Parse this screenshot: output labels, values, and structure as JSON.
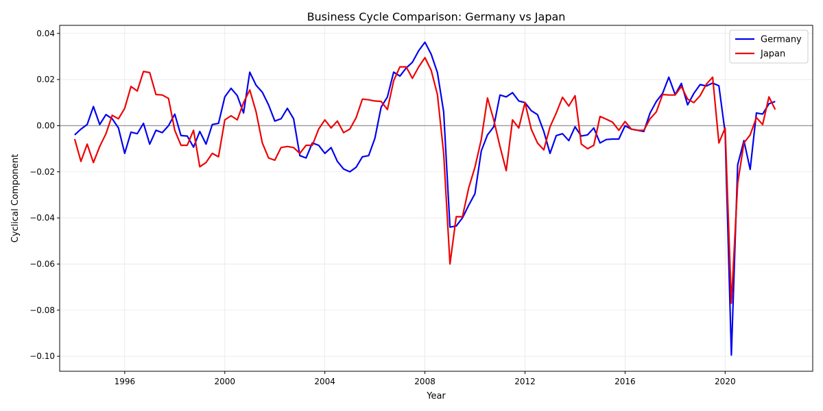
{
  "chart_data": {
    "type": "line",
    "title": "Business Cycle Comparison: Germany vs Japan",
    "xlabel": "Year",
    "ylabel": "Cyclical Component",
    "xlim": [
      1993.4,
      2023.5
    ],
    "ylim": [
      -0.1065,
      0.0435
    ],
    "x_ticks": [
      1996,
      2000,
      2004,
      2008,
      2012,
      2016,
      2020
    ],
    "y_ticks": [
      -0.1,
      -0.08,
      -0.06,
      -0.04,
      -0.02,
      0.0,
      0.02,
      0.04
    ],
    "y_tick_labels": [
      "−0.10",
      "−0.08",
      "−0.06",
      "−0.04",
      "−0.02",
      "0.00",
      "0.02",
      "0.04"
    ],
    "grid": true,
    "zero_line": true,
    "legend_position": "upper-right",
    "x_start": 1994.0,
    "x_step": 0.25,
    "series": [
      {
        "name": "Germany",
        "color": "#0000ee",
        "values": [
          -0.004,
          -0.0015,
          0.0005,
          0.0083,
          0.0005,
          0.0048,
          0.003,
          -0.001,
          -0.012,
          -0.0028,
          -0.0035,
          0.001,
          -0.008,
          -0.002,
          -0.003,
          0.0,
          0.005,
          -0.0043,
          -0.0045,
          -0.0093,
          -0.0025,
          -0.008,
          0.0005,
          0.001,
          0.0125,
          0.0162,
          0.013,
          0.0055,
          0.0232,
          0.0175,
          0.0145,
          0.009,
          0.002,
          0.003,
          0.0075,
          0.003,
          -0.013,
          -0.014,
          -0.0075,
          -0.0085,
          -0.012,
          -0.0095,
          -0.0155,
          -0.0188,
          -0.02,
          -0.018,
          -0.0135,
          -0.013,
          -0.0055,
          0.008,
          0.0125,
          0.0232,
          0.0215,
          0.025,
          0.0275,
          0.0325,
          0.0362,
          0.031,
          0.023,
          0.006,
          -0.044,
          -0.0435,
          -0.04,
          -0.0345,
          -0.0295,
          -0.011,
          -0.004,
          -0.0005,
          0.0133,
          0.0125,
          0.0143,
          0.0107,
          0.01,
          0.0065,
          0.0048,
          -0.0025,
          -0.012,
          -0.0043,
          -0.0035,
          -0.0065,
          -0.0005,
          -0.0045,
          -0.004,
          -0.001,
          -0.0075,
          -0.006,
          -0.0058,
          -0.0058,
          0.0,
          -0.0015,
          -0.002,
          -0.0025,
          0.0055,
          0.0105,
          0.014,
          0.021,
          0.0135,
          0.0183,
          0.009,
          0.014,
          0.0178,
          0.0172,
          0.0185,
          0.0173,
          -0.003,
          -0.0995,
          -0.017,
          -0.0065,
          -0.019,
          0.0055,
          0.005,
          0.0095,
          0.0105
        ]
      },
      {
        "name": "Japan",
        "color": "#ee0000",
        "values": [
          -0.0058,
          -0.0155,
          -0.008,
          -0.016,
          -0.009,
          -0.0035,
          0.0045,
          0.003,
          0.0075,
          0.017,
          0.015,
          0.0235,
          0.023,
          0.0135,
          0.0133,
          0.0118,
          -0.002,
          -0.0085,
          -0.0085,
          -0.002,
          -0.0178,
          -0.016,
          -0.012,
          -0.0135,
          0.0025,
          0.0043,
          0.0025,
          0.01,
          0.0155,
          0.006,
          -0.0075,
          -0.014,
          -0.015,
          -0.0095,
          -0.009,
          -0.0095,
          -0.012,
          -0.0085,
          -0.0085,
          -0.0015,
          0.0025,
          -0.001,
          0.002,
          -0.003,
          -0.0015,
          0.0035,
          0.0115,
          0.0112,
          0.0107,
          0.0105,
          0.007,
          0.0195,
          0.0255,
          0.0255,
          0.0205,
          0.0255,
          0.0295,
          0.024,
          0.0135,
          -0.012,
          -0.06,
          -0.0395,
          -0.0395,
          -0.027,
          -0.018,
          -0.006,
          0.012,
          0.0025,
          -0.009,
          -0.0195,
          0.0025,
          -0.001,
          0.01,
          -0.0015,
          -0.0075,
          -0.0105,
          -0.0005,
          0.0055,
          0.0123,
          0.0085,
          0.013,
          -0.008,
          -0.01,
          -0.0085,
          0.004,
          0.0028,
          0.0015,
          -0.002,
          0.0018,
          -0.0015,
          -0.002,
          -0.002,
          0.003,
          0.006,
          0.0135,
          0.0133,
          0.0133,
          0.017,
          0.0115,
          0.01,
          0.013,
          0.018,
          0.021,
          -0.0075,
          -0.001,
          -0.077,
          -0.025,
          -0.0075,
          -0.004,
          0.0035,
          0.0005,
          0.0125,
          0.007
        ]
      }
    ]
  }
}
